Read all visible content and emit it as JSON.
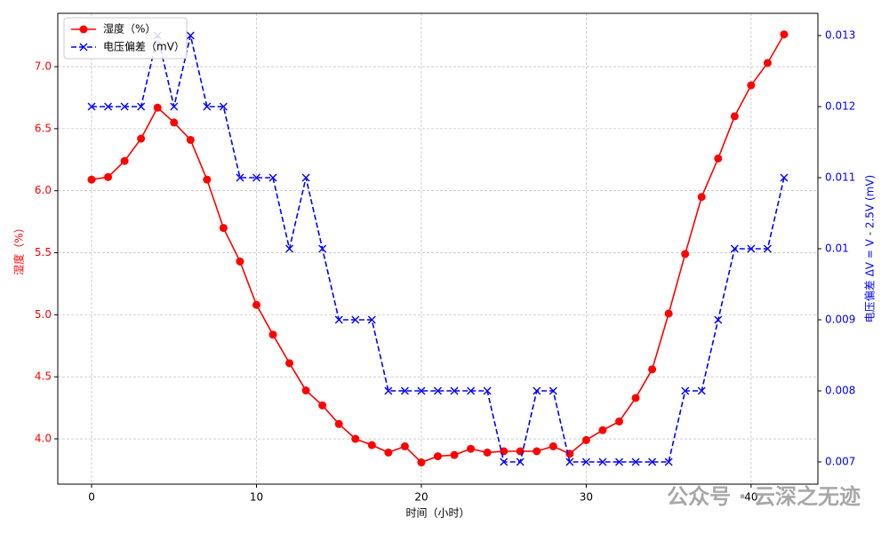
{
  "chart_data": {
    "type": "line",
    "xlabel": "时间（小时）",
    "ylabel": "湿度（%）",
    "y2label": "电压偏差 ΔV = V - 2.5V (mV)",
    "annotation": "公众号 · 云深之无迹",
    "x": [
      0,
      1,
      2,
      3,
      4,
      5,
      6,
      7,
      8,
      9,
      10,
      11,
      12,
      13,
      14,
      15,
      16,
      17,
      18,
      19,
      20,
      21,
      22,
      23,
      24,
      25,
      26,
      27,
      28,
      29,
      30,
      31,
      32,
      33,
      34,
      35,
      36,
      37,
      38,
      39,
      40,
      41,
      42
    ],
    "series": [
      {
        "name": "湿度（%）",
        "color": "#ff0000",
        "marker": "o",
        "linestyle": "solid",
        "axis": "y",
        "values": [
          6.09,
          6.11,
          6.24,
          6.42,
          6.67,
          6.55,
          6.41,
          6.09,
          5.7,
          5.43,
          5.08,
          4.84,
          4.61,
          4.39,
          4.27,
          4.12,
          4.0,
          3.95,
          3.89,
          3.94,
          3.81,
          3.86,
          3.87,
          3.92,
          3.89,
          3.9,
          3.9,
          3.9,
          3.94,
          3.88,
          3.99,
          4.07,
          4.14,
          4.33,
          4.56,
          5.01,
          5.49,
          5.95,
          6.26,
          6.6,
          6.85,
          7.03,
          7.26
        ]
      },
      {
        "name": "电压偏差（mV）",
        "color": "#0000ff",
        "marker": "x",
        "linestyle": "dashed",
        "axis": "y2",
        "values": [
          0.012,
          0.012,
          0.012,
          0.012,
          0.013,
          0.012,
          0.013,
          0.012,
          0.012,
          0.011,
          0.011,
          0.011,
          0.01,
          0.011,
          0.01,
          0.009,
          0.009,
          0.009,
          0.008,
          0.008,
          0.008,
          0.008,
          0.008,
          0.008,
          0.008,
          0.007,
          0.007,
          0.008,
          0.008,
          0.007,
          0.007,
          0.007,
          0.007,
          0.007,
          0.007,
          0.007,
          0.008,
          0.008,
          0.009,
          0.01,
          0.01,
          0.01,
          0.011
        ]
      }
    ],
    "xlim": [
      -2.05,
      44.05
    ],
    "xticks": [
      0,
      10,
      20,
      30,
      40
    ],
    "ylim": [
      3.635,
      7.43
    ],
    "yticks": [
      {
        "value": 4,
        "label": "4.0"
      },
      4.5,
      {
        "value": 5,
        "label": "5.0"
      },
      5.5,
      {
        "value": 6,
        "label": "6.0"
      },
      6.5,
      {
        "value": 7,
        "label": "7.0"
      }
    ],
    "y2lim": [
      0.0066875,
      0.0133125
    ],
    "y2ticks": [
      0.007,
      0.008,
      0.009,
      0.01,
      0.011,
      0.012,
      0.013
    ],
    "grid": true,
    "legend": "upper left"
  }
}
